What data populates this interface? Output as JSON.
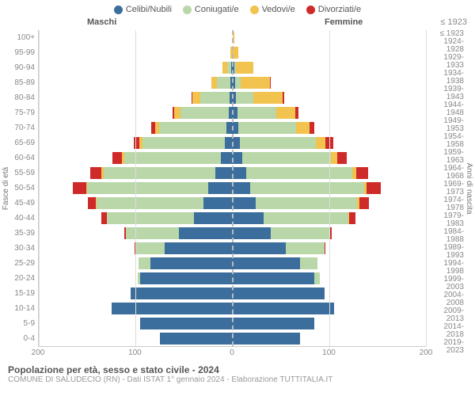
{
  "legend": [
    {
      "label": "Celibi/Nubili",
      "color": "#3b6e9c"
    },
    {
      "label": "Coniugati/e",
      "color": "#b9d7a8"
    },
    {
      "label": "Vedovi/e",
      "color": "#f2c34e"
    },
    {
      "label": "Divorziati/e",
      "color": "#cf2a2a"
    }
  ],
  "headers": {
    "male": "Maschi",
    "female": "Femmine",
    "first_year": "≤ 1923"
  },
  "ylabels": {
    "left": "Fasce di età",
    "right": "Anni di nascita"
  },
  "title": "Popolazione per età, sesso e stato civile - 2024",
  "subtitle": "COMUNE DI SALUDECIO (RN) - Dati ISTAT 1° gennaio 2024 - Elaborazione TUTTITALIA.IT",
  "xmax": 200,
  "xticks_male": [
    200,
    100,
    0
  ],
  "xticks_female": [
    100,
    200
  ],
  "colors": {
    "single": "#3b6e9c",
    "married": "#b9d7a8",
    "widowed": "#f2c34e",
    "divorced": "#cf2a2a",
    "grid": "#dddddd",
    "center": "#bbbbbb",
    "axis": "#cccccc",
    "bg": "#ffffff"
  },
  "rows": [
    {
      "age": "100+",
      "year": "≤ 1923",
      "m": {
        "s": 0,
        "c": 0,
        "w": 0,
        "d": 0
      },
      "f": {
        "s": 0,
        "c": 0,
        "w": 2,
        "d": 0
      }
    },
    {
      "age": "95-99",
      "year": "1924-1928",
      "m": {
        "s": 0,
        "c": 0,
        "w": 2,
        "d": 0
      },
      "f": {
        "s": 0,
        "c": 0,
        "w": 6,
        "d": 0
      }
    },
    {
      "age": "90-94",
      "year": "1929-1933",
      "m": {
        "s": 1,
        "c": 4,
        "w": 5,
        "d": 0
      },
      "f": {
        "s": 2,
        "c": 2,
        "w": 18,
        "d": 0
      }
    },
    {
      "age": "85-89",
      "year": "1934-1938",
      "m": {
        "s": 2,
        "c": 14,
        "w": 6,
        "d": 0
      },
      "f": {
        "s": 3,
        "c": 6,
        "w": 30,
        "d": 1
      }
    },
    {
      "age": "80-84",
      "year": "1939-1943",
      "m": {
        "s": 3,
        "c": 30,
        "w": 8,
        "d": 1
      },
      "f": {
        "s": 4,
        "c": 18,
        "w": 30,
        "d": 2
      }
    },
    {
      "age": "75-79",
      "year": "1944-1948",
      "m": {
        "s": 4,
        "c": 50,
        "w": 6,
        "d": 2
      },
      "f": {
        "s": 5,
        "c": 40,
        "w": 20,
        "d": 3
      }
    },
    {
      "age": "70-74",
      "year": "1949-1953",
      "m": {
        "s": 6,
        "c": 70,
        "w": 4,
        "d": 4
      },
      "f": {
        "s": 6,
        "c": 60,
        "w": 14,
        "d": 5
      }
    },
    {
      "age": "65-69",
      "year": "1954-1958",
      "m": {
        "s": 8,
        "c": 85,
        "w": 3,
        "d": 6
      },
      "f": {
        "s": 8,
        "c": 78,
        "w": 10,
        "d": 8
      }
    },
    {
      "age": "60-64",
      "year": "1959-1963",
      "m": {
        "s": 12,
        "c": 100,
        "w": 2,
        "d": 10
      },
      "f": {
        "s": 10,
        "c": 92,
        "w": 6,
        "d": 10
      }
    },
    {
      "age": "55-59",
      "year": "1964-1968",
      "m": {
        "s": 18,
        "c": 115,
        "w": 2,
        "d": 12
      },
      "f": {
        "s": 14,
        "c": 110,
        "w": 4,
        "d": 12
      }
    },
    {
      "age": "50-54",
      "year": "1969-1973",
      "m": {
        "s": 25,
        "c": 125,
        "w": 1,
        "d": 14
      },
      "f": {
        "s": 18,
        "c": 118,
        "w": 3,
        "d": 14
      }
    },
    {
      "age": "45-49",
      "year": "1974-1978",
      "m": {
        "s": 30,
        "c": 110,
        "w": 1,
        "d": 8
      },
      "f": {
        "s": 24,
        "c": 105,
        "w": 2,
        "d": 10
      }
    },
    {
      "age": "40-44",
      "year": "1979-1983",
      "m": {
        "s": 40,
        "c": 90,
        "w": 0,
        "d": 5
      },
      "f": {
        "s": 32,
        "c": 88,
        "w": 1,
        "d": 6
      }
    },
    {
      "age": "35-39",
      "year": "1984-1988",
      "m": {
        "s": 55,
        "c": 55,
        "w": 0,
        "d": 2
      },
      "f": {
        "s": 40,
        "c": 60,
        "w": 0,
        "d": 3
      }
    },
    {
      "age": "30-34",
      "year": "1989-1993",
      "m": {
        "s": 70,
        "c": 30,
        "w": 0,
        "d": 1
      },
      "f": {
        "s": 55,
        "c": 40,
        "w": 0,
        "d": 1
      }
    },
    {
      "age": "25-29",
      "year": "1994-1998",
      "m": {
        "s": 85,
        "c": 12,
        "w": 0,
        "d": 0
      },
      "f": {
        "s": 70,
        "c": 18,
        "w": 0,
        "d": 0
      }
    },
    {
      "age": "20-24",
      "year": "1999-2003",
      "m": {
        "s": 95,
        "c": 3,
        "w": 0,
        "d": 0
      },
      "f": {
        "s": 85,
        "c": 5,
        "w": 0,
        "d": 0
      }
    },
    {
      "age": "15-19",
      "year": "2004-2008",
      "m": {
        "s": 105,
        "c": 0,
        "w": 0,
        "d": 0
      },
      "f": {
        "s": 95,
        "c": 0,
        "w": 0,
        "d": 0
      }
    },
    {
      "age": "10-14",
      "year": "2009-2013",
      "m": {
        "s": 125,
        "c": 0,
        "w": 0,
        "d": 0
      },
      "f": {
        "s": 105,
        "c": 0,
        "w": 0,
        "d": 0
      }
    },
    {
      "age": "5-9",
      "year": "2014-2018",
      "m": {
        "s": 95,
        "c": 0,
        "w": 0,
        "d": 0
      },
      "f": {
        "s": 85,
        "c": 0,
        "w": 0,
        "d": 0
      }
    },
    {
      "age": "0-4",
      "year": "2019-2023",
      "m": {
        "s": 75,
        "c": 0,
        "w": 0,
        "d": 0
      },
      "f": {
        "s": 70,
        "c": 0,
        "w": 0,
        "d": 0
      }
    }
  ]
}
